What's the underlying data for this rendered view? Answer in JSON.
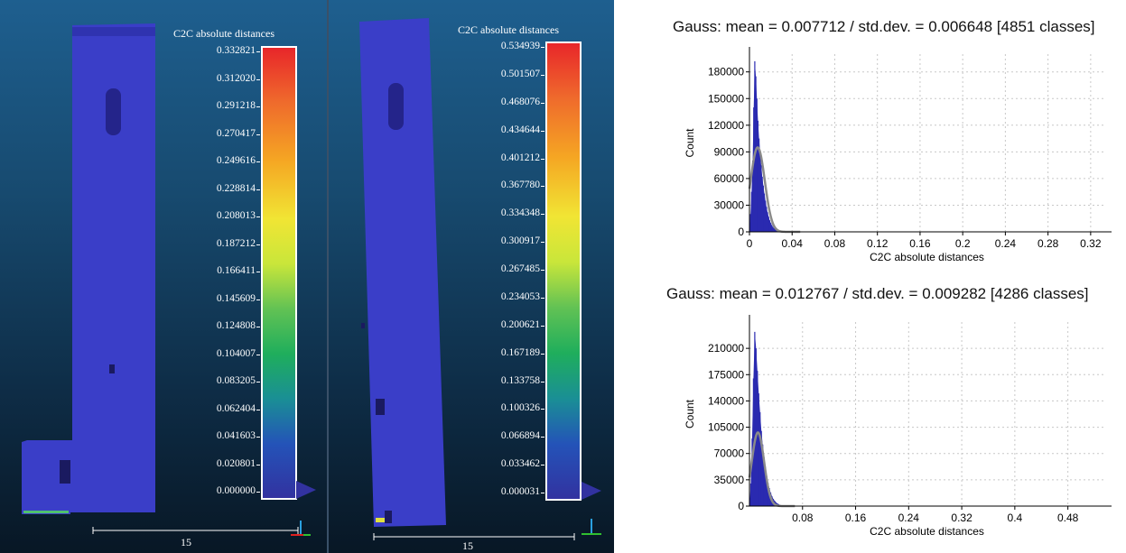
{
  "colors": {
    "bar": "#2a2ab0",
    "gauss": "#8a8a8a",
    "scale_red": "#e02020",
    "scale_green": "#30c030",
    "scale_blue": "#2aa0e0"
  },
  "left_view": {
    "colorbar_title": "C2C absolute distances",
    "ticks": [
      "0.332821",
      "0.312020",
      "0.291218",
      "0.270417",
      "0.249616",
      "0.228814",
      "0.208013",
      "0.187212",
      "0.166411",
      "0.145609",
      "0.124808",
      "0.104007",
      "0.083205",
      "0.062404",
      "0.041603",
      "0.020801",
      "0.000000"
    ],
    "scale_label": "15"
  },
  "right_view": {
    "colorbar_title": "C2C absolute distances",
    "ticks": [
      "0.534939",
      "0.501507",
      "0.468076",
      "0.434644",
      "0.401212",
      "0.367780",
      "0.334348",
      "0.300917",
      "0.267485",
      "0.234053",
      "0.200621",
      "0.167189",
      "0.133758",
      "0.100326",
      "0.066894",
      "0.033462",
      "0.000031"
    ],
    "scale_label": "15"
  },
  "chart_data": [
    {
      "type": "bar",
      "title": "Gauss: mean = 0.007712 / std.dev. = 0.006648 [4851 classes]",
      "xlabel": "C2C absolute distances",
      "ylabel": "Count",
      "xlim": [
        0,
        0.332821
      ],
      "ylim": [
        0,
        200000
      ],
      "xticks": [
        "0",
        "0.04",
        "0.08",
        "0.12",
        "0.16",
        "0.2",
        "0.24",
        "0.28",
        "0.32"
      ],
      "xtick_values": [
        0,
        0.04,
        0.08,
        0.12,
        0.16,
        0.2,
        0.24,
        0.28,
        0.32
      ],
      "yticks": [
        "0",
        "30000",
        "60000",
        "90000",
        "120000",
        "150000",
        "180000"
      ],
      "ytick_values": [
        0,
        30000,
        60000,
        90000,
        120000,
        150000,
        180000
      ],
      "grid": true,
      "hist_x": [
        0.001,
        0.002,
        0.003,
        0.004,
        0.005,
        0.006,
        0.007,
        0.008,
        0.009,
        0.01,
        0.011,
        0.012,
        0.013,
        0.014,
        0.015,
        0.016,
        0.017,
        0.018,
        0.019,
        0.02,
        0.021,
        0.022,
        0.023,
        0.024,
        0.025,
        0.026,
        0.027,
        0.028,
        0.03
      ],
      "hist_y": [
        20000,
        45000,
        80000,
        140000,
        192000,
        175000,
        150000,
        125000,
        105000,
        90000,
        75000,
        62000,
        52000,
        43000,
        35000,
        28000,
        22000,
        17000,
        13000,
        10000,
        7500,
        5500,
        4000,
        3000,
        2000,
        1500,
        1000,
        600,
        200
      ],
      "gauss_mean": 0.007712,
      "gauss_std": 0.006648,
      "gauss_peak": 95000
    },
    {
      "type": "bar",
      "title": "Gauss: mean = 0.012767 / std.dev. = 0.009282 [4286 classes]",
      "xlabel": "C2C absolute distances",
      "ylabel": "Count",
      "xlim": [
        0,
        0.534939
      ],
      "ylim": [
        0,
        245000
      ],
      "xticks": [
        "0.08",
        "0.16",
        "0.24",
        "0.32",
        "0.4",
        "0.48"
      ],
      "xtick_values": [
        0.08,
        0.16,
        0.24,
        0.32,
        0.4,
        0.48
      ],
      "yticks": [
        "0",
        "35000",
        "70000",
        "105000",
        "140000",
        "175000",
        "210000"
      ],
      "ytick_values": [
        0,
        35000,
        70000,
        105000,
        140000,
        175000,
        210000
      ],
      "grid": true,
      "hist_x": [
        0.002,
        0.004,
        0.006,
        0.008,
        0.01,
        0.012,
        0.014,
        0.016,
        0.018,
        0.02,
        0.022,
        0.024,
        0.026,
        0.028,
        0.03,
        0.032,
        0.034,
        0.036,
        0.038,
        0.04,
        0.042,
        0.044,
        0.046,
        0.05
      ],
      "hist_y": [
        30000,
        90000,
        170000,
        232000,
        210000,
        180000,
        150000,
        125000,
        100000,
        82000,
        65000,
        52000,
        40000,
        31000,
        24000,
        18000,
        13000,
        9500,
        7000,
        5000,
        3500,
        2500,
        1500,
        500
      ],
      "gauss_mean": 0.012767,
      "gauss_std": 0.009282,
      "gauss_peak": 98000
    }
  ]
}
